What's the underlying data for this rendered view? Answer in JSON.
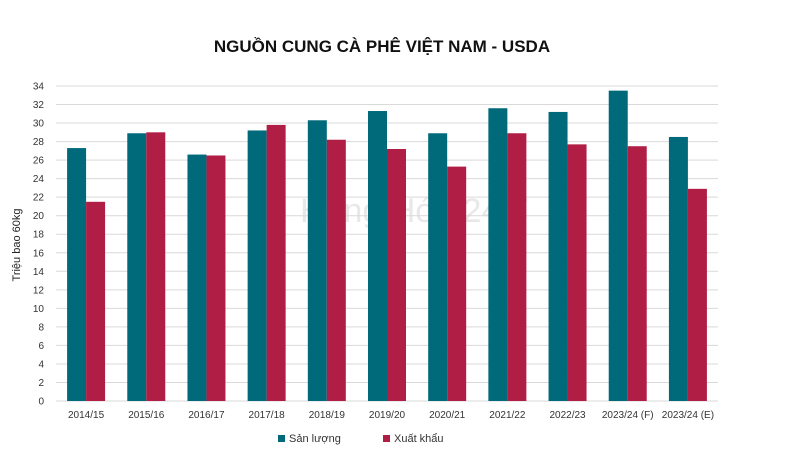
{
  "chart_data": {
    "type": "bar",
    "title": "NGUỒN CUNG CÀ PHÊ VIỆT NAM - USDA",
    "xlabel": "",
    "ylabel": "Triệu bao 60kg",
    "ylim": [
      0,
      34
    ],
    "yticks": [
      0,
      2,
      4,
      6,
      8,
      10,
      12,
      14,
      16,
      18,
      20,
      22,
      24,
      26,
      28,
      30,
      32,
      34
    ],
    "grid": true,
    "legend_position": "bottom",
    "categories": [
      "2014/15",
      "2015/16",
      "2016/17",
      "2017/18",
      "2018/19",
      "2019/20",
      "2020/21",
      "2021/22",
      "2022/23",
      "2023/24 (F)",
      "2023/24 (E)"
    ],
    "series": [
      {
        "name": "Sản lượng",
        "color": "#006a7a",
        "values": [
          27.3,
          28.9,
          26.6,
          29.2,
          30.3,
          31.3,
          28.9,
          31.6,
          31.2,
          33.5,
          28.5
        ]
      },
      {
        "name": "Xuất khẩu",
        "color": "#b01e45",
        "values": [
          21.5,
          29.0,
          26.5,
          29.8,
          28.2,
          27.2,
          25.3,
          28.9,
          27.7,
          27.5,
          22.9
        ]
      }
    ]
  },
  "watermark": {
    "text": "Hàng Hóa 24/7"
  }
}
